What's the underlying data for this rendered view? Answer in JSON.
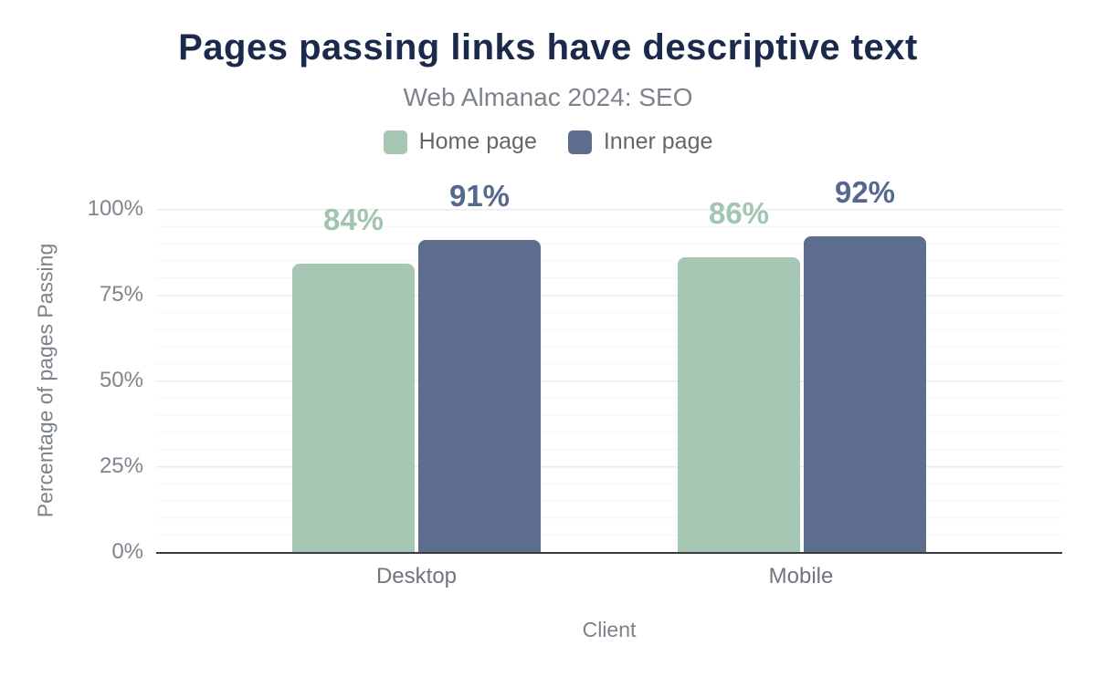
{
  "chart_data": {
    "type": "bar",
    "title": "Pages passing links have descriptive text",
    "subtitle": "Web Almanac 2024: SEO",
    "categories": [
      "Desktop",
      "Mobile"
    ],
    "series": [
      {
        "name": "Home page",
        "color": "#a5c7b3",
        "label_color": "#a0c5b0",
        "values": [
          84,
          86
        ]
      },
      {
        "name": "Inner page",
        "color": "#5c6d8d",
        "label_color": "#55688d",
        "values": [
          91,
          92
        ]
      }
    ],
    "value_suffix": "%",
    "xlabel": "Client",
    "ylabel": "Percentage of pages Passing",
    "yticks": [
      "0%",
      "25%",
      "50%",
      "75%",
      "100%"
    ],
    "ylim": [
      0,
      100
    ],
    "grid": true,
    "legend_position": "top"
  },
  "colors": {
    "background": "#ffffff",
    "title": "#1b2a4b",
    "subtitle": "#7e838b",
    "axis_text": "#7f848d",
    "axis_line": "#3a3b40",
    "grid_minor": "#f5f5f5",
    "grid_major": "#ebebeb"
  }
}
